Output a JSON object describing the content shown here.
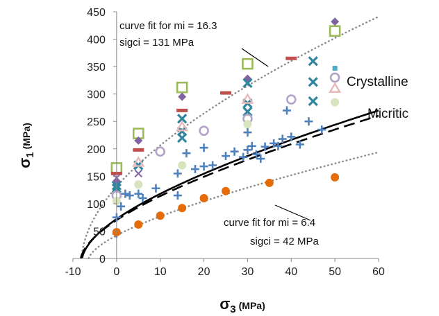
{
  "chart_data": {
    "type": "scatter",
    "title": "",
    "xlabel": {
      "symbol": "σ",
      "sub": "3",
      "unit": "(MPa)"
    },
    "ylabel": {
      "symbol": "σ",
      "sub": "1",
      "unit": "(MPa)"
    },
    "xlim": [
      -10,
      60
    ],
    "ylim": [
      0,
      450
    ],
    "xticks": [
      -10,
      0,
      10,
      20,
      30,
      40,
      50,
      60
    ],
    "yticks": [
      0,
      50,
      100,
      150,
      200,
      250,
      300,
      350,
      400,
      450
    ],
    "grid": false,
    "legend": "none",
    "annotations": {
      "upper_fit": [
        "curve fit for mi = 16.3",
        "sigci = 131 MPa"
      ],
      "lower_fit": [
        "curve fit for mi = 6.4",
        "sigci = 42 MPa"
      ],
      "crystalline": "Crystalline",
      "micritic": "Micritic"
    },
    "curves": [
      {
        "key": "upper_fit",
        "mi": 16.3,
        "sigci": 131,
        "style": "dotted",
        "color": "#8c8c8c"
      },
      {
        "key": "lower_fit",
        "mi": 6.4,
        "sigci": 42,
        "style": "dotted",
        "color": "#8c8c8c"
      },
      {
        "key": "crystalline",
        "mi": 9.0,
        "sigci": 72,
        "style": "solid",
        "color": "#000000"
      },
      {
        "key": "micritic",
        "mi": 8.4,
        "sigci": 70,
        "style": "dashed",
        "color": "#000000"
      }
    ],
    "series": [
      {
        "marker": "hollow-square",
        "color": "#9bbb59",
        "points": [
          [
            0,
            165
          ],
          [
            5,
            228
          ],
          [
            15,
            312
          ],
          [
            30,
            355
          ],
          [
            50,
            415
          ]
        ]
      },
      {
        "marker": "diamond",
        "color": "#8064a2",
        "points": [
          [
            0,
            140
          ],
          [
            5,
            215
          ],
          [
            15,
            295
          ],
          [
            30,
            328
          ],
          [
            50,
            432
          ]
        ]
      },
      {
        "marker": "dash",
        "color": "#c0504d",
        "points": [
          [
            0,
            155
          ],
          [
            5,
            198
          ],
          [
            15,
            270
          ],
          [
            25,
            302
          ],
          [
            40,
            365
          ]
        ]
      },
      {
        "marker": "x",
        "color": "#31859c",
        "points": [
          [
            0,
            133
          ],
          [
            0,
            128
          ],
          [
            5,
            170
          ],
          [
            15,
            255
          ],
          [
            15,
            232
          ],
          [
            15,
            220
          ],
          [
            30,
            320
          ],
          [
            30,
            283
          ],
          [
            30,
            268
          ],
          [
            45,
            360
          ],
          [
            45,
            322
          ],
          [
            45,
            287
          ]
        ]
      },
      {
        "marker": "hollow-circle",
        "color": "#b3a2c7",
        "points": [
          [
            0,
            115
          ],
          [
            10,
            195
          ],
          [
            20,
            233
          ],
          [
            30,
            255
          ],
          [
            40,
            290
          ],
          [
            50,
            330
          ]
        ]
      },
      {
        "marker": "triangle",
        "color": "#e6b9b8",
        "points": [
          [
            5,
            175
          ],
          [
            15,
            240
          ],
          [
            30,
            290
          ],
          [
            50,
            310
          ]
        ]
      },
      {
        "marker": "filled-circle",
        "color": "#d7e4bd",
        "points": [
          [
            0,
            105
          ],
          [
            5,
            135
          ],
          [
            15,
            170
          ],
          [
            30,
            245
          ],
          [
            50,
            285
          ]
        ]
      },
      {
        "marker": "small-square",
        "color": "#4bacc6",
        "points": [
          [
            50,
            347
          ]
        ]
      },
      {
        "marker": "cross",
        "color": "#8064a2",
        "points": [
          [
            5,
            155
          ],
          [
            0,
            147
          ]
        ]
      },
      {
        "marker": "plus",
        "color": "#4f81bd",
        "points": [
          [
            0,
            45
          ],
          [
            0,
            75
          ],
          [
            1,
            95
          ],
          [
            2,
            118
          ],
          [
            3,
            115
          ],
          [
            5,
            118
          ],
          [
            6,
            110
          ],
          [
            9,
            128
          ],
          [
            14,
            115
          ],
          [
            14,
            155
          ],
          [
            16,
            192
          ],
          [
            18,
            163
          ],
          [
            20,
            202
          ],
          [
            20,
            168
          ],
          [
            22,
            170
          ],
          [
            25,
            187
          ],
          [
            27,
            195
          ],
          [
            29,
            185
          ],
          [
            30,
            198
          ],
          [
            30,
            230
          ],
          [
            31,
            205
          ],
          [
            32,
            190
          ],
          [
            33,
            182
          ],
          [
            34,
            204
          ],
          [
            36,
            210
          ],
          [
            37,
            205
          ],
          [
            38,
            218
          ],
          [
            39,
            270
          ],
          [
            40,
            222
          ],
          [
            42,
            208
          ],
          [
            44,
            250
          ],
          [
            47,
            235
          ]
        ]
      },
      {
        "marker": "orange-circle",
        "color": "#e46c0a",
        "points": [
          [
            0,
            48
          ],
          [
            5,
            62
          ],
          [
            10,
            78
          ],
          [
            15,
            92
          ],
          [
            20,
            110
          ],
          [
            25,
            123
          ],
          [
            35,
            138
          ],
          [
            50,
            148
          ]
        ]
      }
    ]
  }
}
